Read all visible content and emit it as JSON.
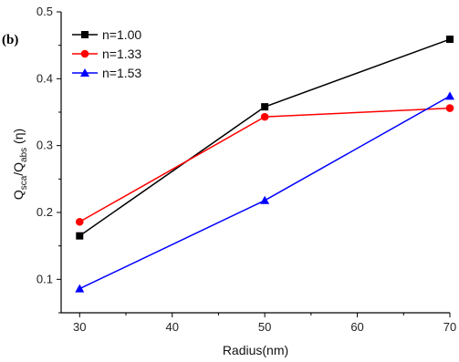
{
  "panel_label": "(b)",
  "chart_data": {
    "type": "line",
    "xlabel": "Radius(nm)",
    "ylabel": {
      "q": "Q",
      "sca": "sca",
      "slash": "/Q",
      "abs": "abs",
      "eta": " (η)"
    },
    "xlim": [
      28,
      70
    ],
    "ylim": [
      0.05,
      0.5
    ],
    "x_ticks": [
      30,
      40,
      50,
      60,
      70
    ],
    "y_ticks": [
      0.1,
      0.2,
      0.3,
      0.4,
      0.5
    ],
    "x": [
      30,
      50,
      70
    ],
    "legend_position": "top-left",
    "grid": false,
    "series": [
      {
        "name": "n=1.00",
        "color": "#000000",
        "marker": "square",
        "values": [
          0.165,
          0.358,
          0.459
        ]
      },
      {
        "name": "n=1.33",
        "color": "#ff0000",
        "marker": "circle",
        "values": [
          0.186,
          0.343,
          0.356
        ]
      },
      {
        "name": "n=1.53",
        "color": "#0000ff",
        "marker": "triangle",
        "values": [
          0.086,
          0.218,
          0.374
        ]
      }
    ]
  }
}
